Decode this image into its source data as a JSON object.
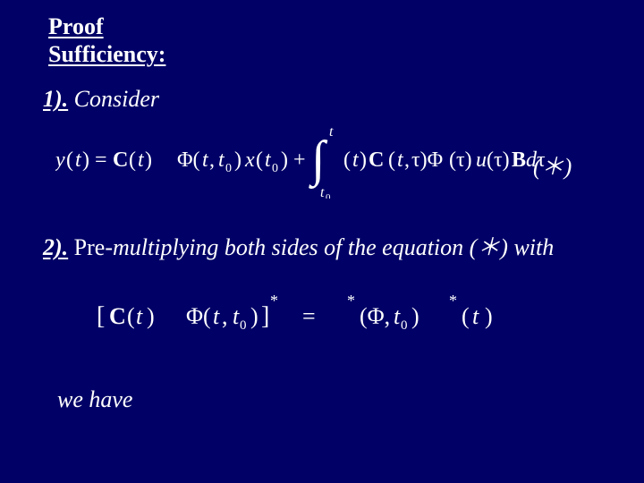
{
  "colors": {
    "background": "#000066",
    "text": "#ffffff"
  },
  "typography": {
    "family": "Times New Roman",
    "heading_fontsize_pt": 20,
    "body_fontsize_pt": 20
  },
  "heading": {
    "line1": "Proof",
    "line2": "Sufficiency:"
  },
  "step1": {
    "num": "1).",
    "text": " Consider",
    "star": "(＊)",
    "equation": {
      "lhs": "y(t) = C(t)",
      "phi1": "Φ(t, t₀) x(t₀) +",
      "integral": {
        "lower": "t₀",
        "upper": "t",
        "body": "(t) C (t, τ) Φ (τ) u(τ) B dτ"
      }
    }
  },
  "step2": {
    "num": "2).",
    "text_a": " Pre",
    "text_b": "-multiplying both sides of the equation (＊) with",
    "equation": {
      "left": "[ C(t)   Φ(t, t₀) ]",
      "left_sup": "*",
      "eq": "=",
      "right_a": "Φ*(t, t₀)",
      "right_b": "C*(t)"
    }
  },
  "wehave": "we have"
}
